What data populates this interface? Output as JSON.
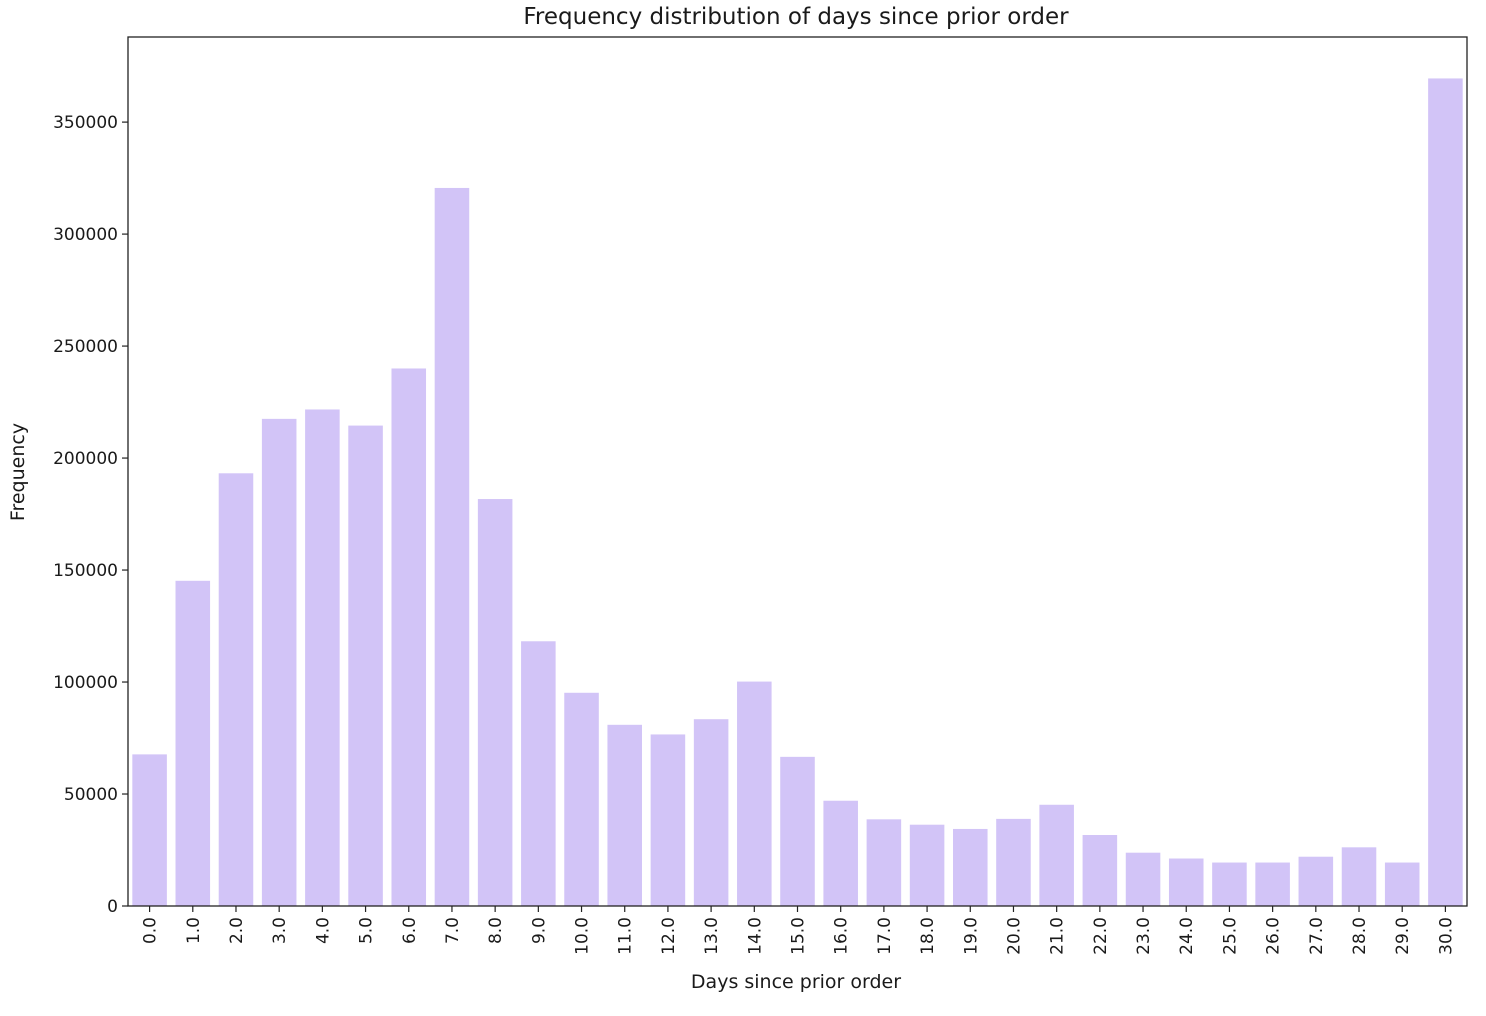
{
  "chart_data": {
    "type": "bar",
    "title": "Frequency distribution of days since prior order",
    "xlabel": "Days since prior order",
    "ylabel": "Frequency",
    "categories": [
      "0.0",
      "1.0",
      "2.0",
      "3.0",
      "4.0",
      "5.0",
      "6.0",
      "7.0",
      "8.0",
      "9.0",
      "10.0",
      "11.0",
      "12.0",
      "13.0",
      "14.0",
      "15.0",
      "16.0",
      "17.0",
      "18.0",
      "19.0",
      "20.0",
      "21.0",
      "22.0",
      "23.0",
      "24.0",
      "25.0",
      "26.0",
      "27.0",
      "28.0",
      "29.0",
      "30.0"
    ],
    "values": [
      67700,
      145200,
      193200,
      217500,
      221700,
      214500,
      240000,
      320600,
      181700,
      118200,
      95200,
      80900,
      76600,
      83400,
      100200,
      66600,
      47000,
      38700,
      36300,
      34400,
      38900,
      45200,
      31700,
      23800,
      21200,
      19400,
      19400,
      22000,
      26200,
      19400,
      369500
    ],
    "yticks": [
      0,
      50000,
      100000,
      150000,
      200000,
      250000,
      300000,
      350000
    ],
    "ylim": [
      0,
      388000
    ],
    "grid": false,
    "bar_color": "#d2c4f7"
  }
}
